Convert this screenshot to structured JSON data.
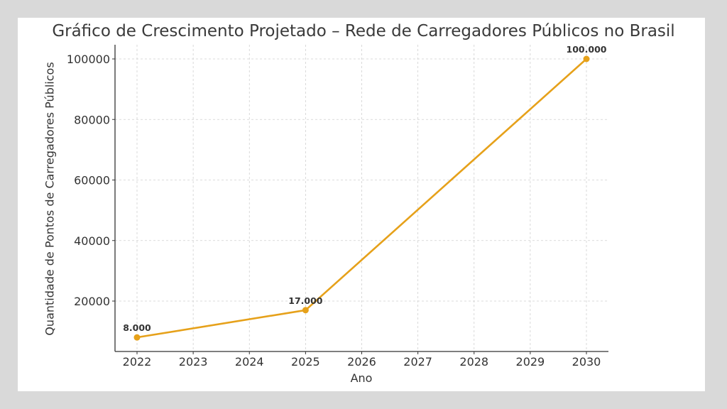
{
  "chart_data": {
    "type": "line",
    "title": "Gráfico de Crescimento Projetado – Rede de Carregadores Públicos no Brasil",
    "xlabel": "Ano",
    "ylabel": "Quantidade de Pontos de Carregadores Públicos",
    "x": [
      2022,
      2025,
      2030
    ],
    "series": [
      {
        "name": "Carregadores Públicos",
        "values": [
          8000,
          17000,
          100000
        ],
        "color": "#e6a11a"
      }
    ],
    "data_labels": [
      "8.000",
      "17.000",
      "100.000"
    ],
    "x_ticks": [
      "2022",
      "2023",
      "2024",
      "2025",
      "2026",
      "2027",
      "2028",
      "2029",
      "2030"
    ],
    "y_ticks": [
      "20000",
      "40000",
      "60000",
      "80000",
      "100000"
    ],
    "xlim": [
      2021.6,
      2030.4
    ],
    "ylim": [
      3500,
      105000
    ],
    "grid": true,
    "legend": "none"
  }
}
